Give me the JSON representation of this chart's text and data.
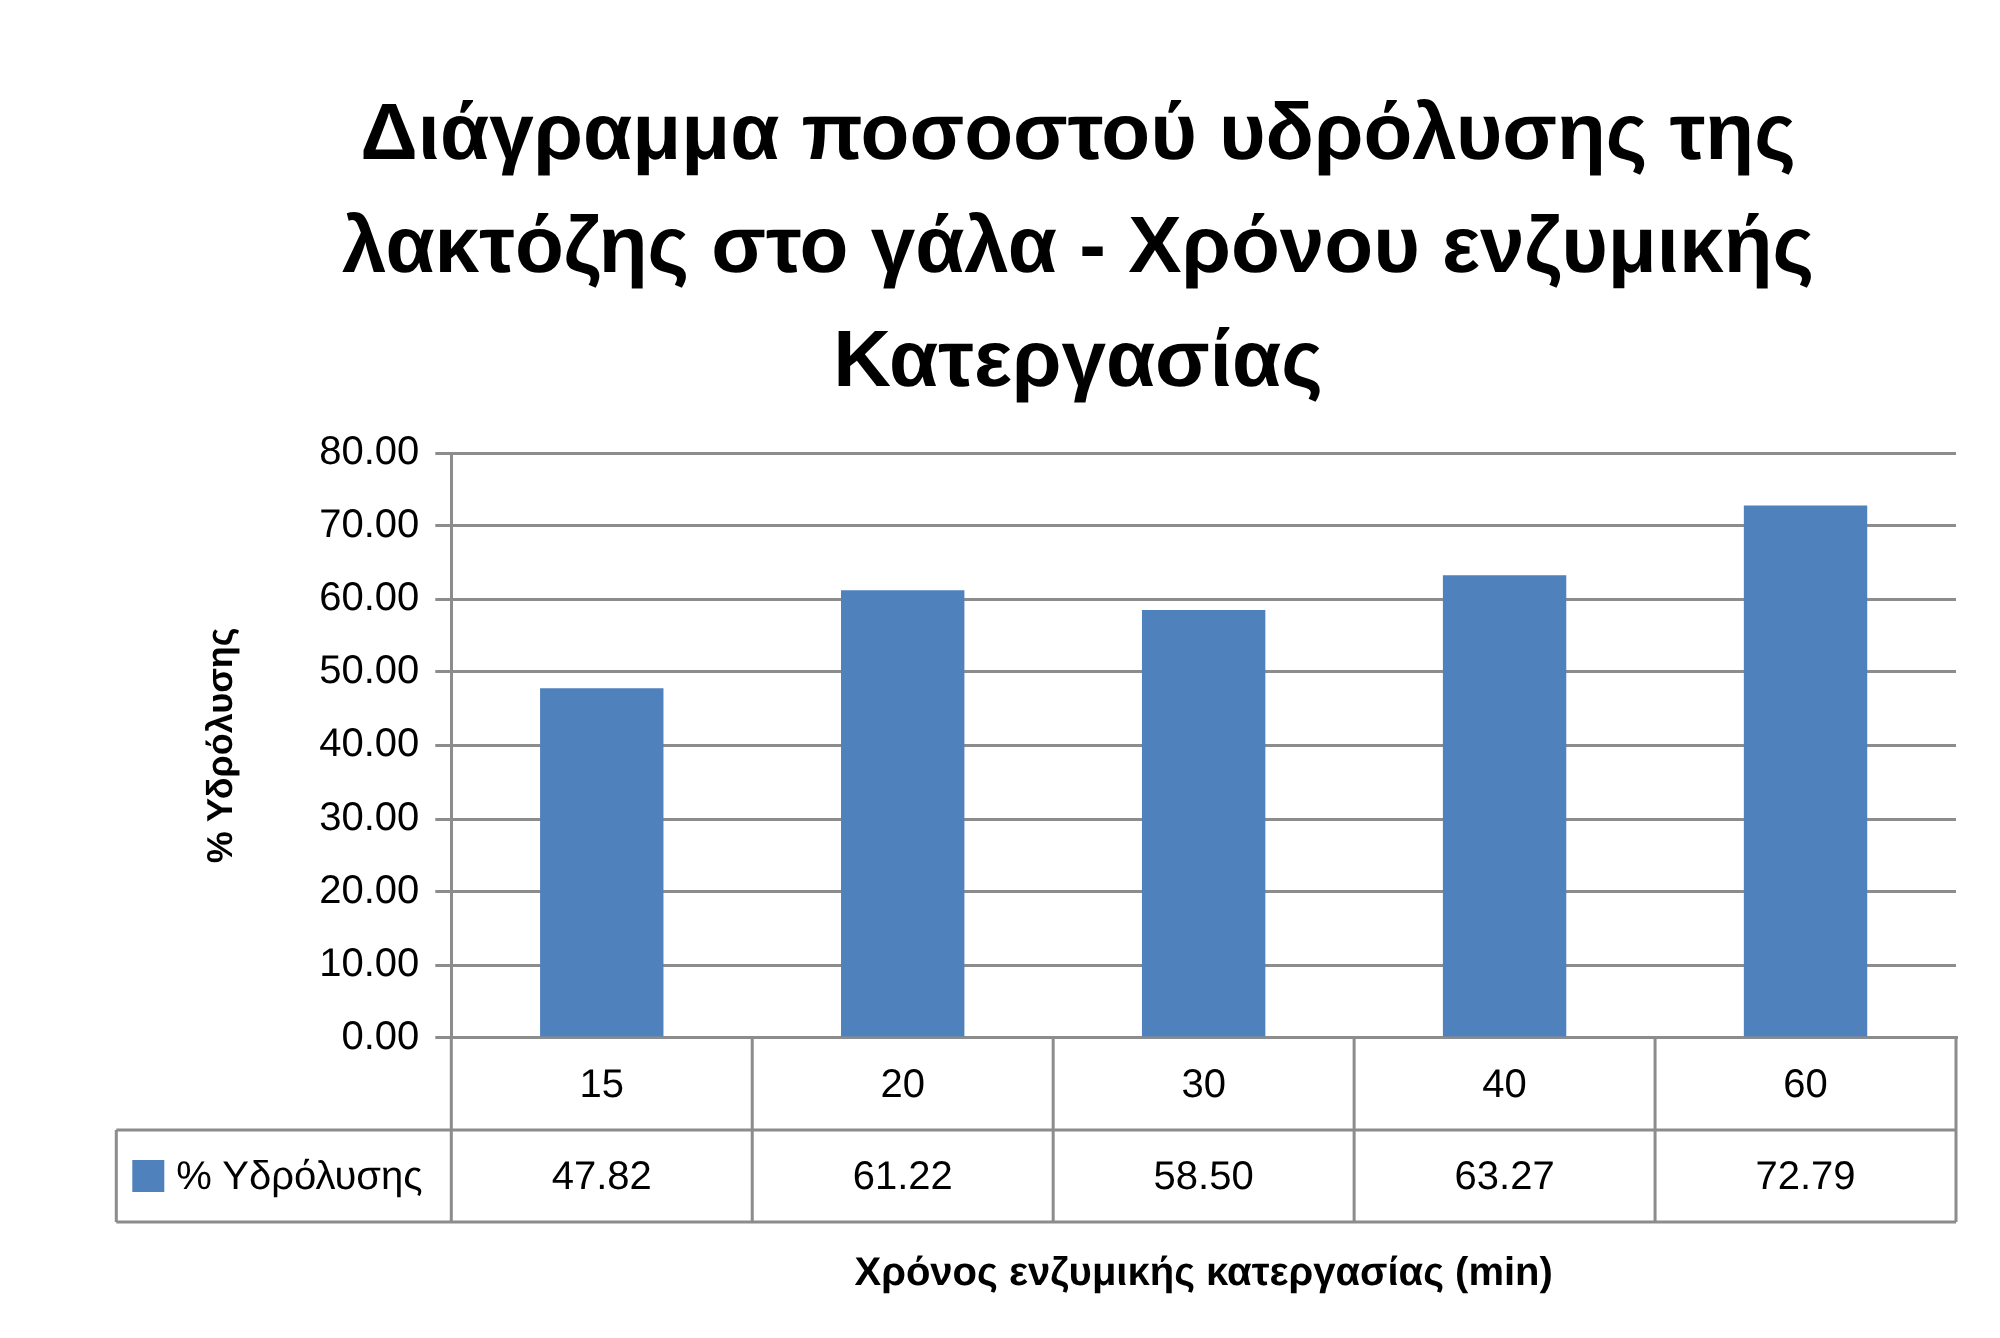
{
  "chart_data": {
    "type": "bar",
    "title": "Διάγραμμα ποσοστού υδρόλυσης της λακτόζης στο γάλα - Χρόνου ενζυμικής Κατεργασίας",
    "xlabel": "Χρόνος ενζυμικής κατεργασίας (min)",
    "ylabel": "% Υδρόλυσης",
    "categories": [
      "15",
      "20",
      "30",
      "40",
      "60"
    ],
    "series": [
      {
        "name": "% Υδρόλυσης",
        "color": "#4f81bd",
        "values": [
          47.82,
          61.22,
          58.5,
          63.27,
          72.79
        ],
        "value_labels": [
          "47.82",
          "61.22",
          "58.50",
          "63.27",
          "72.79"
        ]
      }
    ],
    "ylim": [
      0,
      80
    ],
    "yticks": [
      {
        "value": 0,
        "label": "0.00"
      },
      {
        "value": 10,
        "label": "10.00"
      },
      {
        "value": 20,
        "label": "20.00"
      },
      {
        "value": 30,
        "label": "30.00"
      },
      {
        "value": 40,
        "label": "40.00"
      },
      {
        "value": 50,
        "label": "50.00"
      },
      {
        "value": 60,
        "label": "60.00"
      },
      {
        "value": 70,
        "label": "70.00"
      },
      {
        "value": 80,
        "label": "80.00"
      }
    ],
    "grid": "y",
    "legend": "bottom left"
  }
}
